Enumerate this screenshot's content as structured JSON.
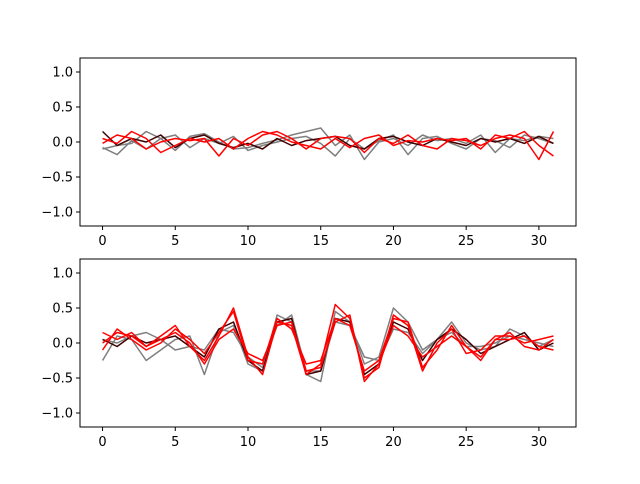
{
  "chart_data": [
    {
      "type": "line",
      "title": "",
      "xlabel": "",
      "ylabel": "",
      "xlim": [
        -1.55,
        32.55
      ],
      "ylim": [
        -1.2,
        1.2
      ],
      "xticks": [
        0,
        5,
        10,
        15,
        20,
        25,
        30
      ],
      "yticks": [
        -1.0,
        -0.5,
        0.0,
        0.5,
        1.0
      ],
      "xtick_labels": [
        "0",
        "5",
        "10",
        "15",
        "20",
        "25",
        "30"
      ],
      "ytick_labels": [
        "−1.0",
        "−0.5",
        "0.0",
        "0.5",
        "1.0"
      ],
      "grid": false,
      "series": [
        {
          "color": "#7f7f7f",
          "values": [
            -0.1,
            -0.05,
            -0.02,
            0.15,
            0.05,
            -0.12,
            0.08,
            0.12,
            0.0,
            -0.1,
            -0.08,
            -0.02,
            0.03,
            0.1,
            0.15,
            0.2,
            -0.05,
            0.1,
            -0.25,
            0.0,
            0.05,
            -0.05,
            0.1,
            0.02,
            0.05,
            -0.02,
            0.1,
            -0.15,
            0.05,
            0.02,
            0.08,
            0.05
          ]
        },
        {
          "color": "#7f7f7f",
          "values": [
            -0.08,
            -0.18,
            0.02,
            -0.1,
            0.05,
            0.1,
            -0.08,
            0.05,
            -0.02,
            0.08,
            -0.12,
            -0.05,
            0.0,
            0.05,
            0.08,
            -0.02,
            -0.2,
            0.05,
            -0.1,
            0.02,
            0.1,
            -0.18,
            0.05,
            0.08,
            -0.02,
            -0.1,
            0.05,
            0.02,
            -0.08,
            0.1,
            0.05,
            -0.02
          ]
        },
        {
          "color": "#3f0000",
          "values": [
            0.15,
            -0.05,
            0.05,
            0.0,
            0.1,
            -0.08,
            0.05,
            0.1,
            -0.02,
            -0.08,
            -0.02,
            -0.1,
            0.05,
            -0.05,
            0.02,
            0.05,
            0.08,
            -0.05,
            -0.1,
            0.05,
            0.08,
            0.0,
            -0.05,
            0.05,
            0.0,
            -0.05,
            0.05,
            0.0,
            0.05,
            -0.02,
            0.08,
            -0.02
          ]
        },
        {
          "color": "#ff0000",
          "values": [
            -0.02,
            0.1,
            0.05,
            -0.1,
            0.0,
            0.05,
            0.02,
            0.05,
            -0.2,
            0.05,
            -0.05,
            0.1,
            0.15,
            0.05,
            -0.1,
            0.05,
            0.08,
            0.05,
            -0.15,
            0.05,
            -0.02,
            0.1,
            -0.05,
            -0.1,
            0.05,
            0.02,
            -0.05,
            0.05,
            0.1,
            0.05,
            -0.25,
            0.15
          ]
        },
        {
          "color": "#ff0000",
          "values": [
            0.05,
            -0.02,
            0.15,
            0.05,
            -0.15,
            -0.05,
            0.05,
            0.0,
            0.05,
            -0.1,
            0.05,
            0.15,
            0.1,
            0.0,
            -0.05,
            -0.1,
            0.05,
            -0.08,
            0.05,
            0.1,
            -0.05,
            0.02,
            0.0,
            0.05,
            0.02,
            0.05,
            -0.1,
            0.1,
            0.05,
            0.15,
            -0.05,
            -0.2
          ]
        }
      ]
    },
    {
      "type": "line",
      "title": "",
      "xlabel": "",
      "ylabel": "",
      "xlim": [
        -1.55,
        32.55
      ],
      "ylim": [
        -1.2,
        1.2
      ],
      "xticks": [
        0,
        5,
        10,
        15,
        20,
        25,
        30
      ],
      "yticks": [
        -1.0,
        -0.5,
        0.0,
        0.5,
        1.0
      ],
      "xtick_labels": [
        "0",
        "5",
        "10",
        "15",
        "20",
        "25",
        "30"
      ],
      "ytick_labels": [
        "−1.0",
        "−0.5",
        "0.0",
        "0.5",
        "1.0"
      ],
      "grid": false,
      "series": [
        {
          "color": "#7f7f7f",
          "values": [
            -0.25,
            0.1,
            0.05,
            -0.25,
            -0.1,
            0.05,
            0.1,
            -0.45,
            0.15,
            0.25,
            -0.3,
            -0.4,
            0.4,
            0.3,
            -0.45,
            -0.55,
            0.45,
            0.3,
            -0.3,
            -0.2,
            0.5,
            0.3,
            -0.1,
            0.05,
            0.3,
            0.0,
            -0.1,
            -0.05,
            0.2,
            0.1,
            -0.05,
            0.05
          ]
        },
        {
          "color": "#7f7f7f",
          "values": [
            0.05,
            0.0,
            0.1,
            0.15,
            0.05,
            -0.1,
            -0.05,
            -0.1,
            0.2,
            0.15,
            -0.2,
            -0.35,
            0.25,
            0.4,
            -0.4,
            -0.4,
            0.3,
            0.25,
            -0.2,
            -0.25,
            0.2,
            0.15,
            -0.15,
            0.05,
            0.15,
            -0.05,
            -0.05,
            0.0,
            0.1,
            0.05,
            0.0,
            -0.05
          ]
        },
        {
          "color": "#3f0000",
          "values": [
            0.05,
            -0.05,
            0.1,
            0.0,
            0.05,
            0.1,
            -0.05,
            -0.2,
            0.2,
            0.3,
            -0.25,
            -0.4,
            0.3,
            0.35,
            -0.45,
            -0.4,
            0.35,
            0.3,
            -0.45,
            -0.3,
            0.3,
            0.2,
            -0.25,
            0.05,
            0.2,
            0.05,
            -0.15,
            -0.05,
            0.05,
            0.15,
            -0.1,
            0.0
          ]
        },
        {
          "color": "#ff0000",
          "values": [
            0.15,
            0.05,
            0.15,
            -0.05,
            0.1,
            0.25,
            -0.05,
            -0.25,
            0.1,
            0.5,
            -0.2,
            -0.45,
            0.3,
            0.25,
            -0.45,
            -0.3,
            0.55,
            0.35,
            -0.5,
            -0.35,
            0.4,
            0.25,
            -0.4,
            0.0,
            0.2,
            -0.15,
            -0.1,
            0.1,
            0.1,
            0.0,
            0.05,
            0.1
          ]
        },
        {
          "color": "#ff0000",
          "values": [
            -0.1,
            0.2,
            0.05,
            -0.1,
            0.0,
            0.2,
            0.05,
            -0.15,
            0.15,
            0.45,
            -0.25,
            -0.3,
            0.35,
            0.2,
            -0.3,
            -0.25,
            0.35,
            0.25,
            -0.4,
            -0.25,
            0.35,
            0.3,
            -0.35,
            -0.1,
            0.25,
            -0.05,
            -0.25,
            0.05,
            0.15,
            -0.05,
            -0.1,
            0.05
          ]
        },
        {
          "color": "#ff0000",
          "values": [
            0.0,
            0.15,
            0.1,
            -0.05,
            0.05,
            0.15,
            0.0,
            -0.3,
            0.05,
            0.2,
            -0.15,
            -0.25,
            0.25,
            0.3,
            -0.4,
            -0.35,
            0.3,
            0.4,
            -0.55,
            -0.3,
            0.25,
            0.1,
            -0.2,
            -0.05,
            0.1,
            -0.05,
            -0.2,
            0.05,
            0.05,
            0.1,
            -0.05,
            -0.1
          ]
        }
      ]
    }
  ]
}
